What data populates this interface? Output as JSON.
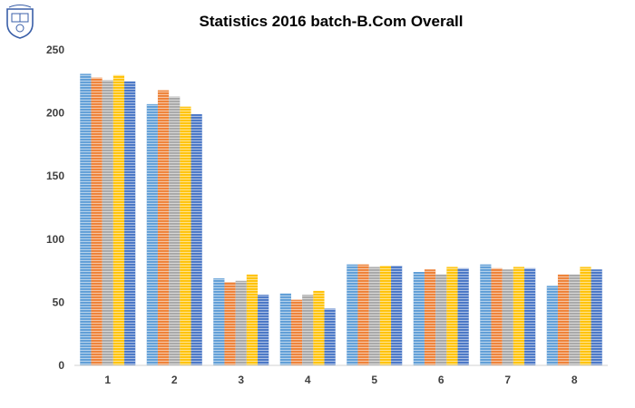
{
  "chart_data": {
    "type": "bar",
    "title": "Statistics 2016 batch-B.Com Overall",
    "xlabel": "",
    "ylabel": "",
    "ylim": [
      0,
      250
    ],
    "yticks": [
      0,
      50,
      100,
      150,
      200,
      250
    ],
    "categories": [
      "1",
      "2",
      "3",
      "4",
      "5",
      "6",
      "7",
      "8"
    ],
    "grid": false,
    "legend": "none",
    "series": [
      {
        "values": [
          231,
          207,
          69,
          57,
          80,
          74,
          80,
          63
        ],
        "color": "#5b9bd5"
      },
      {
        "values": [
          228,
          218,
          66,
          52,
          80,
          76,
          77,
          72
        ],
        "color": "#ed7d31"
      },
      {
        "values": [
          226,
          213,
          67,
          56,
          78,
          72,
          76,
          72
        ],
        "color": "#a5a5a5"
      },
      {
        "values": [
          230,
          205,
          72,
          59,
          79,
          78,
          78,
          78
        ],
        "color": "#ffc000"
      },
      {
        "values": [
          225,
          199,
          56,
          45,
          79,
          77,
          77,
          76
        ],
        "color": "#4472c4"
      }
    ]
  }
}
